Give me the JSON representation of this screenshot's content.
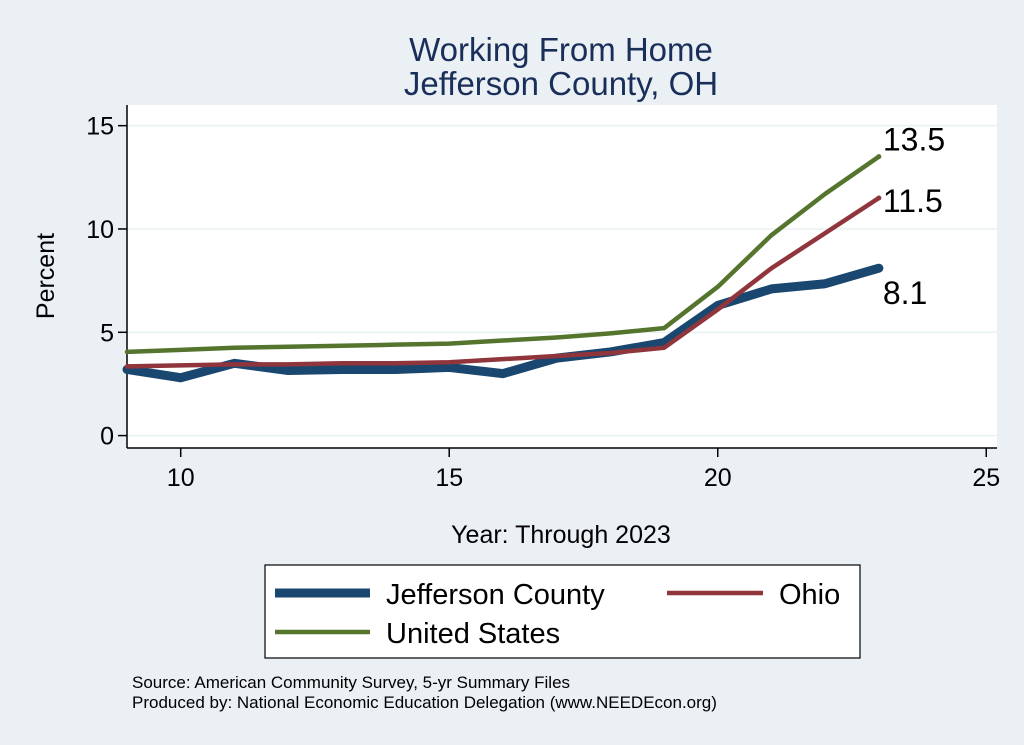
{
  "chart_data": {
    "type": "line",
    "title": [
      "Working From Home",
      "Jefferson County, OH"
    ],
    "xlabel": "Year: Through 2023",
    "ylabel": "Percent",
    "xlim": [
      9,
      25.2
    ],
    "ylim": [
      -0.6,
      16
    ],
    "x_ticks": [
      10,
      15,
      20,
      25
    ],
    "y_ticks": [
      0,
      5,
      10,
      15
    ],
    "grid": true,
    "legend_position": "bottom",
    "x": [
      9,
      10,
      11,
      12,
      13,
      14,
      15,
      16,
      17,
      18,
      19,
      20,
      21,
      22,
      23
    ],
    "series": [
      {
        "name": "Jefferson County",
        "color": "#1a476f",
        "values": [
          3.2,
          2.8,
          3.5,
          3.15,
          3.2,
          3.2,
          3.3,
          3.0,
          3.75,
          4.05,
          4.5,
          6.3,
          7.1,
          7.35,
          8.1
        ]
      },
      {
        "name": "Ohio",
        "color": "#90353b",
        "values": [
          3.35,
          3.4,
          3.45,
          3.45,
          3.5,
          3.5,
          3.55,
          3.7,
          3.85,
          4.0,
          4.25,
          6.1,
          8.1,
          9.8,
          11.5
        ]
      },
      {
        "name": "United States",
        "color": "#55752f",
        "values": [
          4.05,
          4.15,
          4.25,
          4.3,
          4.35,
          4.4,
          4.45,
          4.6,
          4.75,
          4.95,
          5.2,
          7.2,
          9.7,
          11.7,
          13.5
        ]
      }
    ],
    "end_labels": [
      "8.1",
      "11.5",
      "13.5"
    ]
  },
  "notes": {
    "source": "Source: American Community Survey, 5-yr Summary Files",
    "produced_by": "Produced by: National Economic Education Delegation (www.NEEDEcon.org)"
  }
}
